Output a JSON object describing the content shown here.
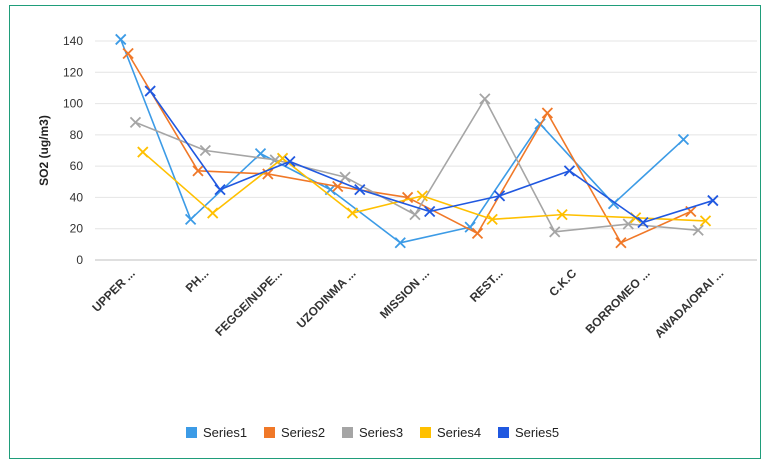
{
  "chart_data": {
    "type": "line",
    "title": "",
    "xlabel": "",
    "ylabel": "SO2 (ug/m3)",
    "ylim": [
      0,
      140
    ],
    "yticks": [
      0,
      20,
      40,
      60,
      80,
      100,
      120,
      140
    ],
    "grid": true,
    "legend_position": "bottom",
    "categories": [
      "UPPER ...",
      "PH...",
      "FEGGE/NUPE...",
      "UZODINMA ...",
      "MISSION ...",
      "REST...",
      "C.K.C",
      "BORROMEO ...",
      "AWADA/ORAI ..."
    ],
    "series": [
      {
        "name": "Series1",
        "color": "#3c9be6",
        "points": [
          [
            0.35,
            141
          ],
          [
            1.3,
            26
          ],
          [
            2.25,
            68
          ],
          [
            3.2,
            45
          ],
          [
            4.15,
            11
          ],
          [
            5.1,
            21
          ],
          [
            6.05,
            87
          ],
          [
            7.05,
            36
          ],
          [
            8,
            77
          ]
        ]
      },
      {
        "name": "Series2",
        "color": "#f07828",
        "points": [
          [
            0.45,
            132
          ],
          [
            1.4,
            57
          ],
          [
            2.35,
            55
          ],
          [
            3.3,
            47
          ],
          [
            4.25,
            40
          ],
          [
            5.2,
            17
          ],
          [
            6.15,
            94
          ],
          [
            7.15,
            11
          ],
          [
            8.1,
            31
          ]
        ]
      },
      {
        "name": "Series3",
        "color": "#a5a5a5",
        "points": [
          [
            0.55,
            88
          ],
          [
            1.5,
            70
          ],
          [
            2.45,
            64
          ],
          [
            3.4,
            53
          ],
          [
            4.35,
            29
          ],
          [
            5.3,
            103
          ],
          [
            6.25,
            18
          ],
          [
            7.25,
            23
          ],
          [
            8.2,
            19
          ]
        ]
      },
      {
        "name": "Series4",
        "color": "#ffc000",
        "points": [
          [
            0.65,
            69
          ],
          [
            1.6,
            30
          ],
          [
            2.55,
            65
          ],
          [
            3.5,
            30
          ],
          [
            4.45,
            41
          ],
          [
            5.4,
            26
          ],
          [
            6.35,
            29
          ],
          [
            7.35,
            27
          ],
          [
            8.3,
            25
          ]
        ]
      },
      {
        "name": "Series5",
        "color": "#2058e0",
        "points": [
          [
            0.75,
            108
          ],
          [
            1.7,
            45
          ],
          [
            2.65,
            63
          ],
          [
            3.6,
            45
          ],
          [
            4.55,
            31
          ],
          [
            5.5,
            41
          ],
          [
            6.45,
            57
          ],
          [
            7.45,
            24
          ],
          [
            8.4,
            38
          ]
        ]
      }
    ]
  }
}
